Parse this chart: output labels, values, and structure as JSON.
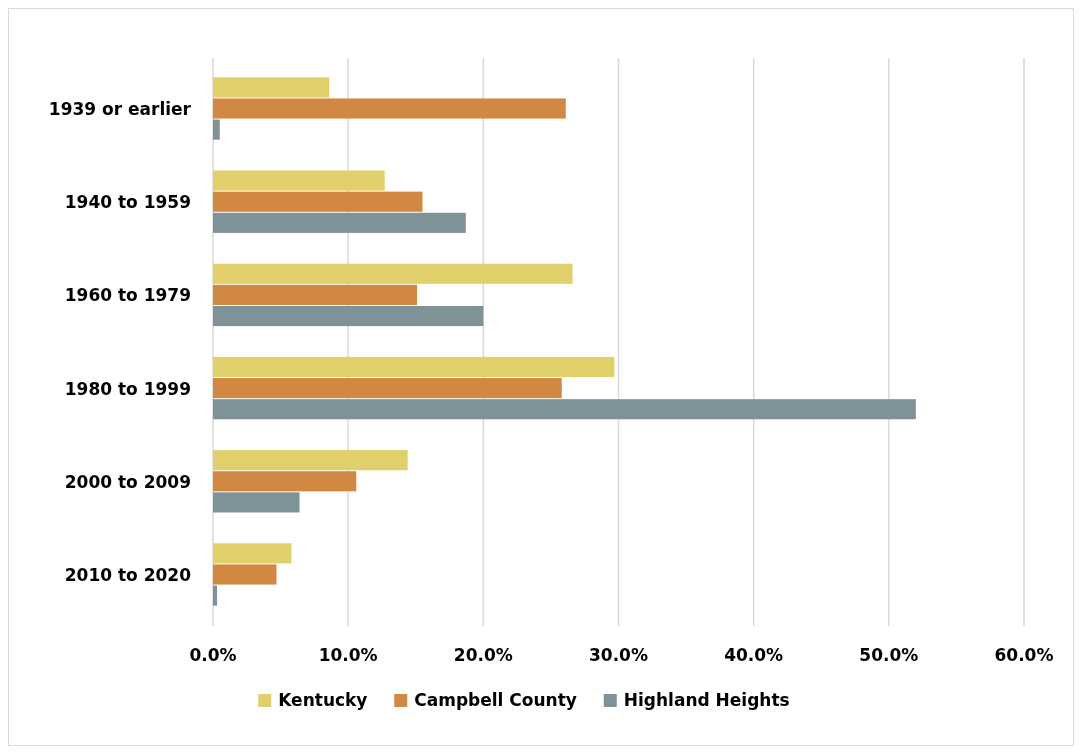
{
  "chart_data": {
    "type": "bar",
    "orientation": "horizontal",
    "categories": [
      "1939 or earlier",
      "1940 to 1959",
      "1960 to 1979",
      "1980 to 1999",
      "2000 to 2009",
      "2010 to 2020"
    ],
    "series": [
      {
        "name": "Kentucky",
        "color": "#e0cf6b",
        "values": [
          8.6,
          12.7,
          26.6,
          29.7,
          14.4,
          5.8
        ]
      },
      {
        "name": "Campbell County",
        "color": "#d08842",
        "values": [
          26.1,
          15.5,
          15.1,
          25.8,
          10.6,
          4.7
        ]
      },
      {
        "name": "Highland Heights",
        "color": "#7f9298",
        "values": [
          0.5,
          18.7,
          20.0,
          52.0,
          6.4,
          0.3
        ]
      }
    ],
    "xlim": [
      0,
      60
    ],
    "xticks": [
      {
        "value": 0,
        "label": "0.0%"
      },
      {
        "value": 10,
        "label": "10.0%"
      },
      {
        "value": 20,
        "label": "20.0%"
      },
      {
        "value": 30,
        "label": "30.0%"
      },
      {
        "value": 40,
        "label": "40.0%"
      },
      {
        "value": 50,
        "label": "50.0%"
      },
      {
        "value": 60,
        "label": "60.0%"
      }
    ],
    "grid": "x",
    "legend": "bottom"
  }
}
